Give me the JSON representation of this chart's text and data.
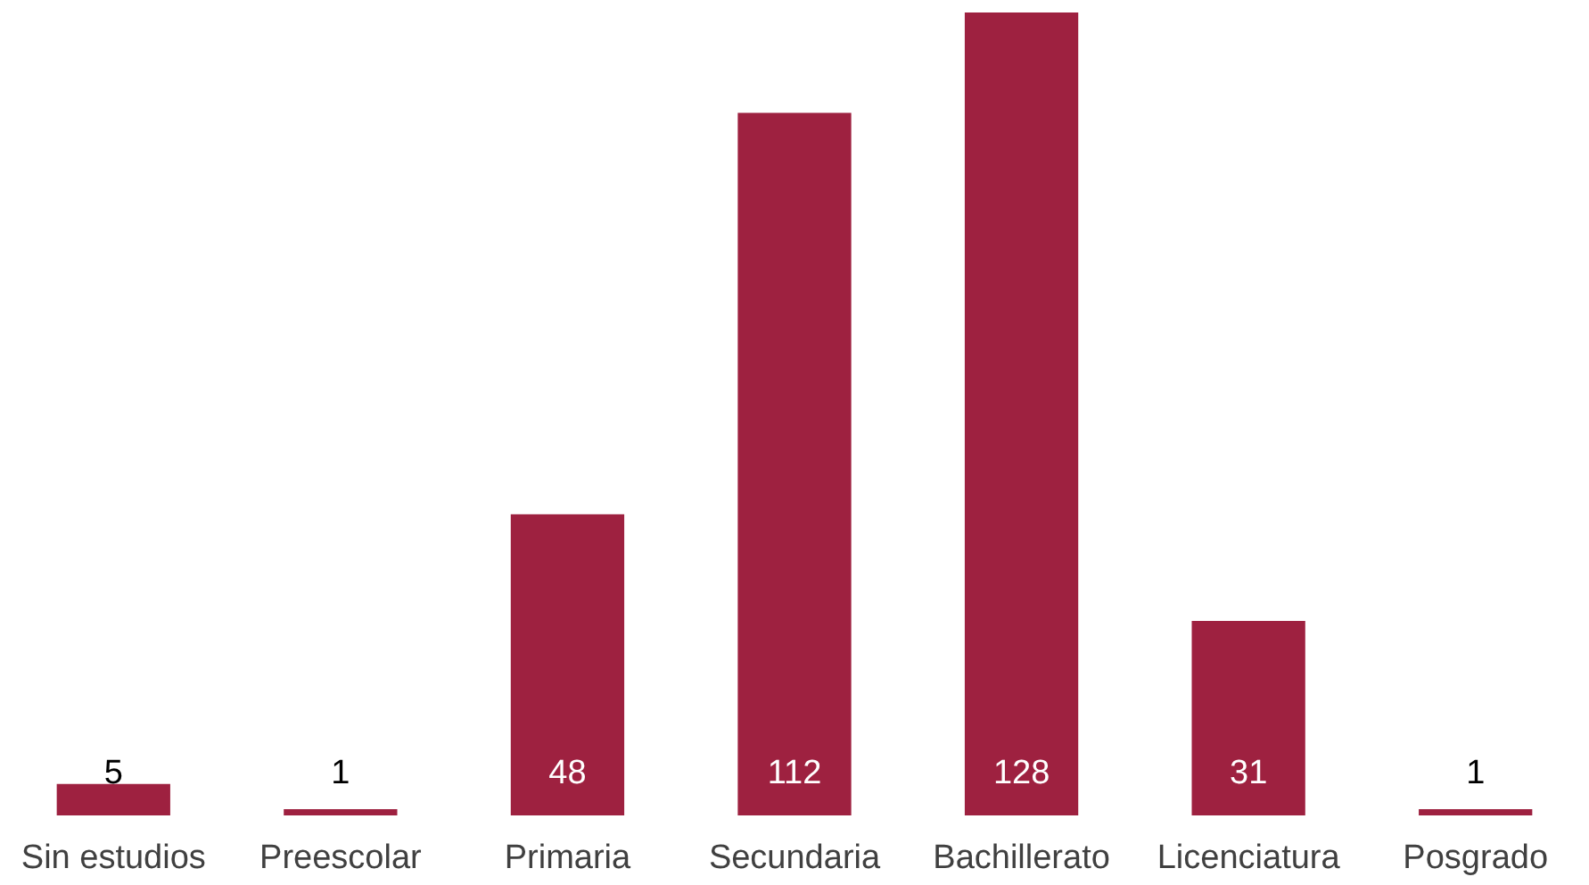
{
  "chart_data": {
    "type": "bar",
    "categories": [
      "Sin estudios",
      "Preescolar",
      "Primaria",
      "Secundaria",
      "Bachillerato",
      "Licenciatura",
      "Posgrado"
    ],
    "values": [
      5,
      1,
      48,
      112,
      128,
      31,
      1
    ],
    "color": "#9e2140",
    "data_labels": true
  }
}
